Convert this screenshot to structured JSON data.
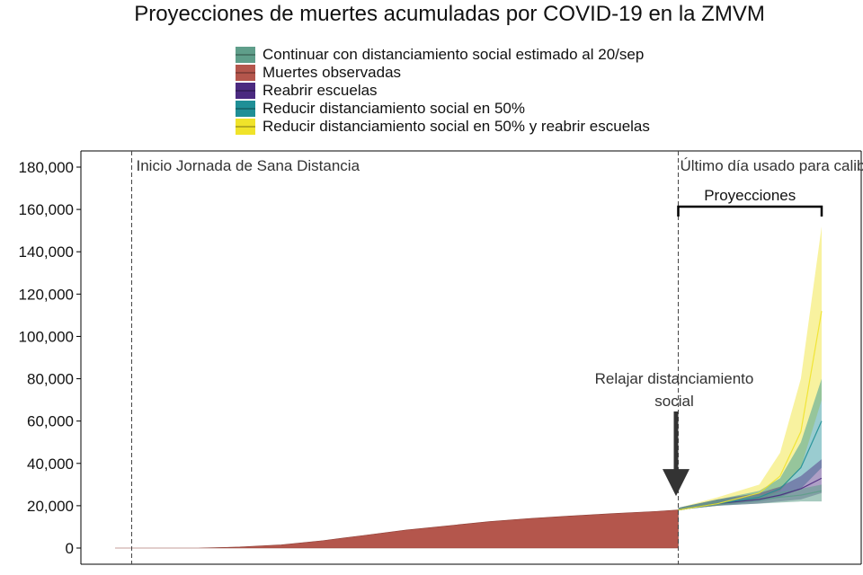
{
  "chart_data": {
    "type": "area",
    "title": "Proyecciones de muertes acumuladas por COVID-19 en la ZMVM",
    "xlabel": "",
    "ylabel": "",
    "ylim": [
      0,
      190000
    ],
    "yticks": [
      0,
      20000,
      40000,
      60000,
      80000,
      100000,
      120000,
      140000,
      160000,
      180000
    ],
    "ytick_labels": [
      "0",
      "20,000",
      "40,000",
      "60,000",
      "80,000",
      "100,000",
      "120,000",
      "140,000",
      "160,000",
      "180,000"
    ],
    "x_unit": "days",
    "xlim": [
      0,
      340
    ],
    "legend_position": "top",
    "grid": false,
    "series": [
      {
        "name": "Muertes observadas",
        "color": "#b4564c",
        "x": [
          0,
          20,
          40,
          60,
          80,
          100,
          120,
          140,
          160,
          180,
          200,
          220,
          240,
          260,
          271
        ],
        "y": [
          0,
          0,
          0,
          500,
          1500,
          3500,
          6000,
          8500,
          10500,
          12500,
          14000,
          15200,
          16300,
          17300,
          18000
        ]
      },
      {
        "name": "Continuar con distanciamiento social estimado al 20/sep",
        "color": "#5f9e8a",
        "x": [
          271,
          290,
          310,
          330,
          340
        ],
        "y": [
          18000,
          21000,
          23000,
          25000,
          27000
        ],
        "lower": [
          18000,
          20000,
          21000,
          22000,
          22000
        ],
        "upper": [
          19000,
          23000,
          25000,
          28000,
          30000
        ]
      },
      {
        "name": "Reabrir escuelas",
        "color": "#4b2a80",
        "x": [
          271,
          290,
          310,
          320,
          330,
          340
        ],
        "y": [
          18000,
          21000,
          23000,
          25000,
          28000,
          33000
        ],
        "lower": [
          18000,
          20000,
          21000,
          22000,
          23000,
          26000
        ],
        "upper": [
          19000,
          23000,
          26000,
          29000,
          34000,
          42000
        ]
      },
      {
        "name": "Reducir distanciamiento social en 50%",
        "color": "#1f8f96",
        "x": [
          271,
          290,
          310,
          320,
          330,
          340
        ],
        "y": [
          18000,
          21000,
          24000,
          28000,
          38000,
          60000
        ],
        "lower": [
          18000,
          20000,
          22000,
          24000,
          28000,
          38000
        ],
        "upper": [
          19000,
          23000,
          27000,
          33000,
          50000,
          80000
        ]
      },
      {
        "name": "Reducir distanciamiento social en 50% y reabrir escuelas",
        "color": "#f0e32a",
        "x": [
          271,
          290,
          310,
          320,
          330,
          340
        ],
        "y": [
          18000,
          21000,
          26000,
          34000,
          55000,
          112000
        ],
        "lower": [
          18000,
          20000,
          23000,
          27000,
          38000,
          70000
        ],
        "upper": [
          19000,
          24000,
          30000,
          45000,
          80000,
          152000
        ]
      }
    ],
    "annotations": {
      "start_line_label": "Inicio Jornada de Sana Distancia",
      "calibration_line_label": "Último día usado para calibrar",
      "projections_label": "Proyecciones",
      "relax_label_line1": "Relajar distanciamiento",
      "relax_label_line2": "social",
      "start_line_x": 8,
      "calibration_line_x": 271,
      "relax_arrow_x": 330,
      "relax_arrow_y": 25000
    }
  }
}
